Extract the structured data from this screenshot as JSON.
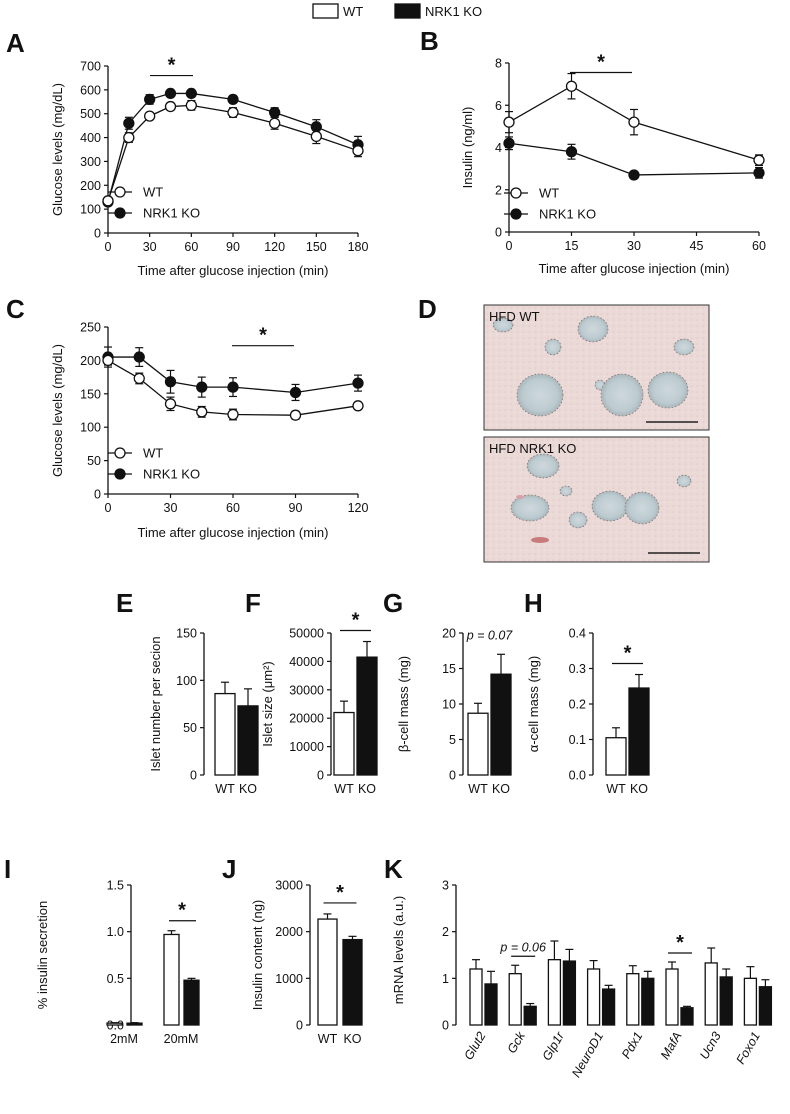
{
  "legend": {
    "wt": "WT",
    "ko": "NRK1 KO"
  },
  "panels": {
    "A": {
      "letter": "A",
      "type": "line",
      "xlabel": "Time after glucose injection (min)",
      "ylabel": "Glucose levels (mg/dL)",
      "xticks": [
        0,
        30,
        60,
        90,
        120,
        150,
        180
      ],
      "yticks": [
        0,
        100,
        200,
        300,
        400,
        500,
        600,
        700
      ],
      "xlim": [
        0,
        180
      ],
      "ylim": [
        0,
        700
      ],
      "legend": [
        "WT",
        "NRK1 KO"
      ],
      "star": "*",
      "x": [
        0,
        15,
        30,
        45,
        60,
        90,
        120,
        150,
        180
      ],
      "series": [
        {
          "name": "WT",
          "values": [
            135,
            400,
            490,
            530,
            535,
            505,
            460,
            405,
            345
          ],
          "err": [
            12,
            20,
            15,
            15,
            20,
            20,
            25,
            30,
            25
          ]
        },
        {
          "name": "NRK1 KO",
          "values": [
            130,
            460,
            560,
            585,
            585,
            560,
            505,
            445,
            370
          ],
          "err": [
            12,
            25,
            20,
            10,
            10,
            15,
            20,
            30,
            35
          ]
        }
      ]
    },
    "B": {
      "letter": "B",
      "type": "line",
      "xlabel": "Time after glucose injection (min)",
      "ylabel": "Insulin (ng/ml)",
      "xticks": [
        0,
        15,
        30,
        45,
        60
      ],
      "yticks": [
        0,
        2,
        4,
        6,
        8
      ],
      "xlim": [
        0,
        60
      ],
      "ylim": [
        0,
        8
      ],
      "legend": [
        "WT",
        "NRK1 KO"
      ],
      "star": "*",
      "x": [
        0,
        15,
        30,
        60
      ],
      "series": [
        {
          "name": "WT",
          "values": [
            5.2,
            6.9,
            5.2,
            3.4
          ],
          "err": [
            0.5,
            0.6,
            0.6,
            0.25
          ]
        },
        {
          "name": "NRK1 KO",
          "values": [
            4.2,
            3.8,
            2.7,
            2.8
          ],
          "err": [
            0.3,
            0.35,
            0.1,
            0.25
          ]
        }
      ]
    },
    "C": {
      "letter": "C",
      "type": "line",
      "xlabel": "Time after glucose injection (min)",
      "ylabel": "Glucose levels (mg/dL)",
      "xticks": [
        0,
        30,
        60,
        90,
        120
      ],
      "yticks": [
        0,
        50,
        100,
        150,
        200,
        250
      ],
      "xlim": [
        0,
        120
      ],
      "ylim": [
        0,
        250
      ],
      "legend": [
        "WT",
        "NRK1 KO"
      ],
      "star": "*",
      "x": [
        0,
        15,
        30,
        45,
        60,
        90,
        120
      ],
      "series": [
        {
          "name": "WT",
          "values": [
            200,
            173,
            135,
            123,
            119,
            118,
            132
          ],
          "err": [
            7,
            8,
            10,
            8,
            8,
            6,
            3
          ]
        },
        {
          "name": "NRK1 KO",
          "values": [
            205,
            205,
            168,
            160,
            160,
            152,
            166
          ],
          "err": [
            15,
            14,
            17,
            15,
            14,
            12,
            12
          ]
        }
      ]
    },
    "D": {
      "letter": "D",
      "top_label": "HFD WT",
      "bottom_label": "HFD NRK1 KO"
    },
    "E": {
      "letter": "E",
      "type": "bar",
      "ylabel": "Islet number per secion",
      "categories": [
        "WT",
        "KO"
      ],
      "values": [
        86,
        73
      ],
      "err": [
        12,
        18
      ],
      "yticks": [
        0,
        50,
        100,
        150
      ],
      "ylim": [
        0,
        150
      ],
      "annotation": ""
    },
    "F": {
      "letter": "F",
      "type": "bar",
      "ylabel": "Islet size (μm²)",
      "categories": [
        "WT",
        "KO"
      ],
      "values": [
        22000,
        41500
      ],
      "err": [
        4000,
        5500
      ],
      "yticks": [
        0,
        10000,
        20000,
        30000,
        40000,
        50000
      ],
      "ylim": [
        0,
        50000
      ],
      "annotation": "*"
    },
    "G": {
      "letter": "G",
      "type": "bar",
      "ylabel": "β-cell mass (mg)",
      "categories": [
        "WT",
        "KO"
      ],
      "values": [
        8.7,
        14.2
      ],
      "err": [
        1.4,
        2.8
      ],
      "yticks": [
        0,
        5,
        10,
        15,
        20
      ],
      "ylim": [
        0,
        20
      ],
      "annotation": "p = 0.07"
    },
    "H": {
      "letter": "H",
      "type": "bar",
      "ylabel": "α-cell mass (mg)",
      "categories": [
        "WT",
        "KO"
      ],
      "values": [
        0.105,
        0.245
      ],
      "err": [
        0.028,
        0.038
      ],
      "yticks": [
        0.0,
        0.1,
        0.2,
        0.3,
        0.4
      ],
      "ylim": [
        0,
        0.4
      ],
      "annotation": "*"
    },
    "I": {
      "letter": "I",
      "type": "bar",
      "ylabel": "% insulin secretion",
      "categories": [
        "2mM",
        "20mM"
      ],
      "series": [
        {
          "name": "WT",
          "values": [
            0.02,
            0.97
          ],
          "err": [
            0.005,
            0.04
          ]
        },
        {
          "name": "NRK1 KO",
          "values": [
            0.02,
            0.48
          ],
          "err": [
            0.005,
            0.02
          ]
        }
      ],
      "yticks": [
        0.0,
        0.5,
        1.0,
        1.5
      ],
      "ylim": [
        0,
        1.5
      ],
      "annotation": "*"
    },
    "J": {
      "letter": "J",
      "type": "bar",
      "ylabel": "Insulin content (ng)",
      "categories": [
        "WT",
        "KO"
      ],
      "values": [
        2270,
        1830
      ],
      "err": [
        110,
        70
      ],
      "yticks": [
        0,
        1000,
        2000,
        3000
      ],
      "ylim": [
        0,
        3000
      ],
      "annotation": "*"
    },
    "K": {
      "letter": "K",
      "type": "bar",
      "ylabel": "mRNA levels (a.u.)",
      "categories": [
        "Glut2",
        "Gck",
        "Glp1r",
        "NeuroD1",
        "Pdx1",
        "MafA",
        "Ucn3",
        "Foxo1"
      ],
      "series": [
        {
          "name": "WT",
          "values": [
            1.2,
            1.1,
            1.4,
            1.2,
            1.1,
            1.2,
            1.33,
            1.0
          ],
          "err": [
            0.2,
            0.18,
            0.4,
            0.18,
            0.17,
            0.15,
            0.32,
            0.25
          ]
        },
        {
          "name": "NRK1 KO",
          "values": [
            0.88,
            0.4,
            1.37,
            0.77,
            1.0,
            0.37,
            1.03,
            0.82
          ],
          "err": [
            0.27,
            0.06,
            0.25,
            0.08,
            0.15,
            0.03,
            0.17,
            0.15
          ]
        }
      ],
      "yticks": [
        0,
        1,
        2,
        3
      ],
      "ylim": [
        0,
        3
      ],
      "annotations": [
        {
          "text": "p = 0.06",
          "category": 1
        },
        {
          "text": "*",
          "category": 5
        }
      ]
    }
  },
  "chart_data": [
    {
      "panel": "A",
      "type": "line",
      "xlabel": "Time after glucose injection (min)",
      "ylabel": "Glucose levels (mg/dL)",
      "xlim": [
        0,
        180
      ],
      "ylim": [
        0,
        700
      ],
      "grid": false,
      "x": [
        0,
        15,
        30,
        45,
        60,
        90,
        120,
        150,
        180
      ],
      "series": [
        {
          "name": "WT",
          "values": [
            135,
            400,
            490,
            530,
            535,
            505,
            460,
            405,
            345
          ]
        },
        {
          "name": "NRK1 KO",
          "values": [
            130,
            460,
            560,
            585,
            585,
            560,
            505,
            445,
            370
          ]
        }
      ]
    },
    {
      "panel": "B",
      "type": "line",
      "xlabel": "Time after glucose injection (min)",
      "ylabel": "Insulin (ng/ml)",
      "xlim": [
        0,
        60
      ],
      "ylim": [
        0,
        8
      ],
      "grid": false,
      "x": [
        0,
        15,
        30,
        60
      ],
      "series": [
        {
          "name": "WT",
          "values": [
            5.2,
            6.9,
            5.2,
            3.4
          ]
        },
        {
          "name": "NRK1 KO",
          "values": [
            4.2,
            3.8,
            2.7,
            2.8
          ]
        }
      ]
    },
    {
      "panel": "C",
      "type": "line",
      "xlabel": "Time after glucose injection (min)",
      "ylabel": "Glucose levels (mg/dL)",
      "xlim": [
        0,
        120
      ],
      "ylim": [
        0,
        250
      ],
      "grid": false,
      "x": [
        0,
        15,
        30,
        45,
        60,
        90,
        120
      ],
      "series": [
        {
          "name": "WT",
          "values": [
            200,
            173,
            135,
            123,
            119,
            118,
            132
          ]
        },
        {
          "name": "NRK1 KO",
          "values": [
            205,
            205,
            168,
            160,
            160,
            152,
            166
          ]
        }
      ]
    },
    {
      "panel": "E",
      "type": "bar",
      "ylabel": "Islet number per secion",
      "categories": [
        "WT",
        "KO"
      ],
      "values": [
        86,
        73
      ],
      "ylim": [
        0,
        150
      ]
    },
    {
      "panel": "F",
      "type": "bar",
      "ylabel": "Islet size (μm²)",
      "categories": [
        "WT",
        "KO"
      ],
      "values": [
        22000,
        41500
      ],
      "ylim": [
        0,
        50000
      ]
    },
    {
      "panel": "G",
      "type": "bar",
      "ylabel": "β-cell mass (mg)",
      "categories": [
        "WT",
        "KO"
      ],
      "values": [
        8.7,
        14.2
      ],
      "ylim": [
        0,
        20
      ]
    },
    {
      "panel": "H",
      "type": "bar",
      "ylabel": "α-cell mass (mg)",
      "categories": [
        "WT",
        "KO"
      ],
      "values": [
        0.105,
        0.245
      ],
      "ylim": [
        0,
        0.4
      ]
    },
    {
      "panel": "I",
      "type": "bar",
      "ylabel": "% insulin secretion",
      "categories": [
        "2mM",
        "20mM"
      ],
      "ylim": [
        0,
        1.5
      ],
      "series": [
        {
          "name": "WT",
          "values": [
            0.02,
            0.97
          ]
        },
        {
          "name": "NRK1 KO",
          "values": [
            0.02,
            0.48
          ]
        }
      ]
    },
    {
      "panel": "J",
      "type": "bar",
      "ylabel": "Insulin content (ng)",
      "categories": [
        "WT",
        "KO"
      ],
      "values": [
        2270,
        1830
      ],
      "ylim": [
        0,
        3000
      ]
    },
    {
      "panel": "K",
      "type": "bar",
      "ylabel": "mRNA levels (a.u.)",
      "categories": [
        "Glut2",
        "Gck",
        "Glp1r",
        "NeuroD1",
        "Pdx1",
        "MafA",
        "Ucn3",
        "Foxo1"
      ],
      "ylim": [
        0,
        3
      ],
      "series": [
        {
          "name": "WT",
          "values": [
            1.2,
            1.1,
            1.4,
            1.2,
            1.1,
            1.2,
            1.33,
            1.0
          ]
        },
        {
          "name": "NRK1 KO",
          "values": [
            0.88,
            0.4,
            1.37,
            0.77,
            1.0,
            0.37,
            1.03,
            0.82
          ]
        }
      ]
    }
  ]
}
